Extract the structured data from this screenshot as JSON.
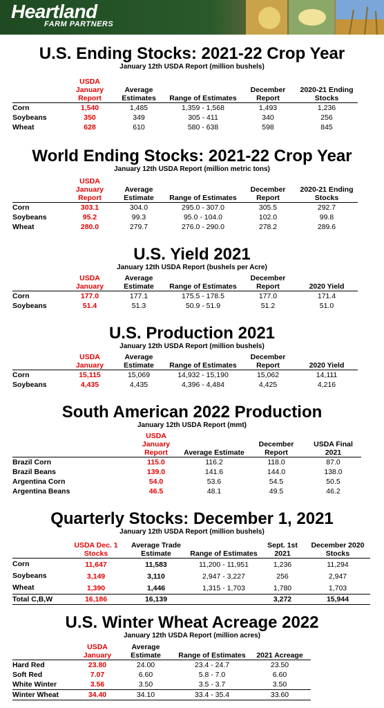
{
  "header": {
    "logo": "Heartland",
    "logo_sub": "FARM PARTNERS"
  },
  "colors": {
    "accent_red": "#e00000",
    "banner_green": "#1f4a22"
  },
  "sections": [
    {
      "title": "U.S. Ending Stocks:   2021-22 Crop Year",
      "subtitle": "January 12th USDA Report  (million bushels)",
      "columns": [
        "USDA January Report",
        "Average Estimates",
        "Range of Estimates",
        "December Report",
        "2020-21 Ending Stocks"
      ],
      "rows": [
        [
          "Corn",
          "1,540",
          "1,485",
          "1,359 - 1,568",
          "1,493",
          "1,236"
        ],
        [
          "Soybeans",
          "350",
          "349",
          "305 - 411",
          "340",
          "256"
        ],
        [
          "Wheat",
          "628",
          "610",
          "580 - 638",
          "598",
          "845"
        ]
      ]
    },
    {
      "title": "World Ending Stocks:   2021-22 Crop Year",
      "subtitle": "January 12th USDA Report  (million metric tons)",
      "columns": [
        "USDA January Report",
        "Average Estimate",
        "Range of Estimates",
        "December Report",
        "2020-21 Ending Stocks"
      ],
      "rows": [
        [
          "Corn",
          "303.1",
          "304.0",
          "295.0 - 307.0",
          "305.5",
          "292.7"
        ],
        [
          "Soybeans",
          "95.2",
          "99.3",
          "95.0 - 104.0",
          "102.0",
          "99.8"
        ],
        [
          "Wheat",
          "280.0",
          "279.7",
          "276.0 - 290.0",
          "278.2",
          "289.6"
        ]
      ]
    },
    {
      "title": "U.S. Yield 2021",
      "subtitle": "January 12th USDA Report  (bushels per Acre)",
      "columns": [
        "USDA January",
        "Average Estimate",
        "Range of Estimates",
        "December Report",
        "2020 Yield"
      ],
      "rows": [
        [
          "Corn",
          "177.0",
          "177.1",
          "175.5 - 178.5",
          "177.0",
          "171.4"
        ],
        [
          "Soybeans",
          "51.4",
          "51.3",
          "50.9 - 51.9",
          "51.2",
          "51.0"
        ]
      ]
    },
    {
      "title": "U.S. Production 2021",
      "subtitle": "January 12th USDA Report  (million bushels)",
      "columns": [
        "USDA January",
        "Average Estimate",
        "Range of Estimates",
        "December Report",
        "2020 Yield"
      ],
      "rows": [
        [
          "Corn",
          "15,115",
          "15,069",
          "14,932 - 15,190",
          "15,062",
          "14,111"
        ],
        [
          "Soybeans",
          "4,435",
          "4,435",
          "4,396 - 4,484",
          "4,425",
          "4,216"
        ]
      ]
    },
    {
      "title": "South American 2022 Production",
      "subtitle": "January 12th USDA Report  (mmt)",
      "columns": [
        "USDA January Report",
        "Average Estimate",
        "December Report",
        "USDA Final 2021"
      ],
      "rows": [
        [
          "Brazil Corn",
          "115.0",
          "116.2",
          "118.0",
          "87.0"
        ],
        [
          "Brazil Beans",
          "139.0",
          "141.6",
          "144.0",
          "138.0"
        ],
        [
          "Argentina Corn",
          "54.0",
          "53.6",
          "54.5",
          "50.5"
        ],
        [
          "Argentina Beans",
          "46.5",
          "48.1",
          "49.5",
          "46.2"
        ]
      ]
    },
    {
      "title": "Quarterly Stocks:  December 1, 2021",
      "subtitle": "January 12th    USDA Report  (million bushels)",
      "columns": [
        "USDA Dec. 1 Stocks",
        "Average Trade Estimate",
        "Range of Estimates",
        "Sept. 1st 2021",
        "December 2020 Stocks"
      ],
      "rows": [
        [
          "Corn",
          "11,647",
          "11,583",
          "11,200 - 11,951",
          "1,236",
          "11,294"
        ],
        [
          "Soybeans",
          "3,149",
          "3,110",
          "2,947 - 3,227",
          "256",
          "2,947"
        ],
        [
          "Wheat",
          "1,390",
          "1,446",
          "1,315 - 1,703",
          "1,780",
          "1,703"
        ]
      ],
      "total": [
        "Total  C,B,W",
        "16,186",
        "16,139",
        "",
        "3,272",
        "15,944"
      ]
    },
    {
      "title": "U.S. Winter Wheat Acreage 2022",
      "subtitle": "January 12th USDA Report  (million acres)",
      "columns": [
        "USDA January",
        "Average Estimate",
        "Range of Estimates",
        "2021 Acreage"
      ],
      "rows": [
        [
          "Hard Red",
          "23.80",
          "24.00",
          "23.4 - 24.7",
          "23.50"
        ],
        [
          "Soft Red",
          "7.07",
          "6.60",
          "5.8 - 7.0",
          "6.60"
        ],
        [
          "White Winter",
          "3.56",
          "3.50",
          "3.5 - 3.7",
          "3.50"
        ]
      ],
      "total": [
        "Winter Wheat",
        "34.40",
        "34.10",
        "33.4 - 35.4",
        "33.60"
      ]
    }
  ]
}
